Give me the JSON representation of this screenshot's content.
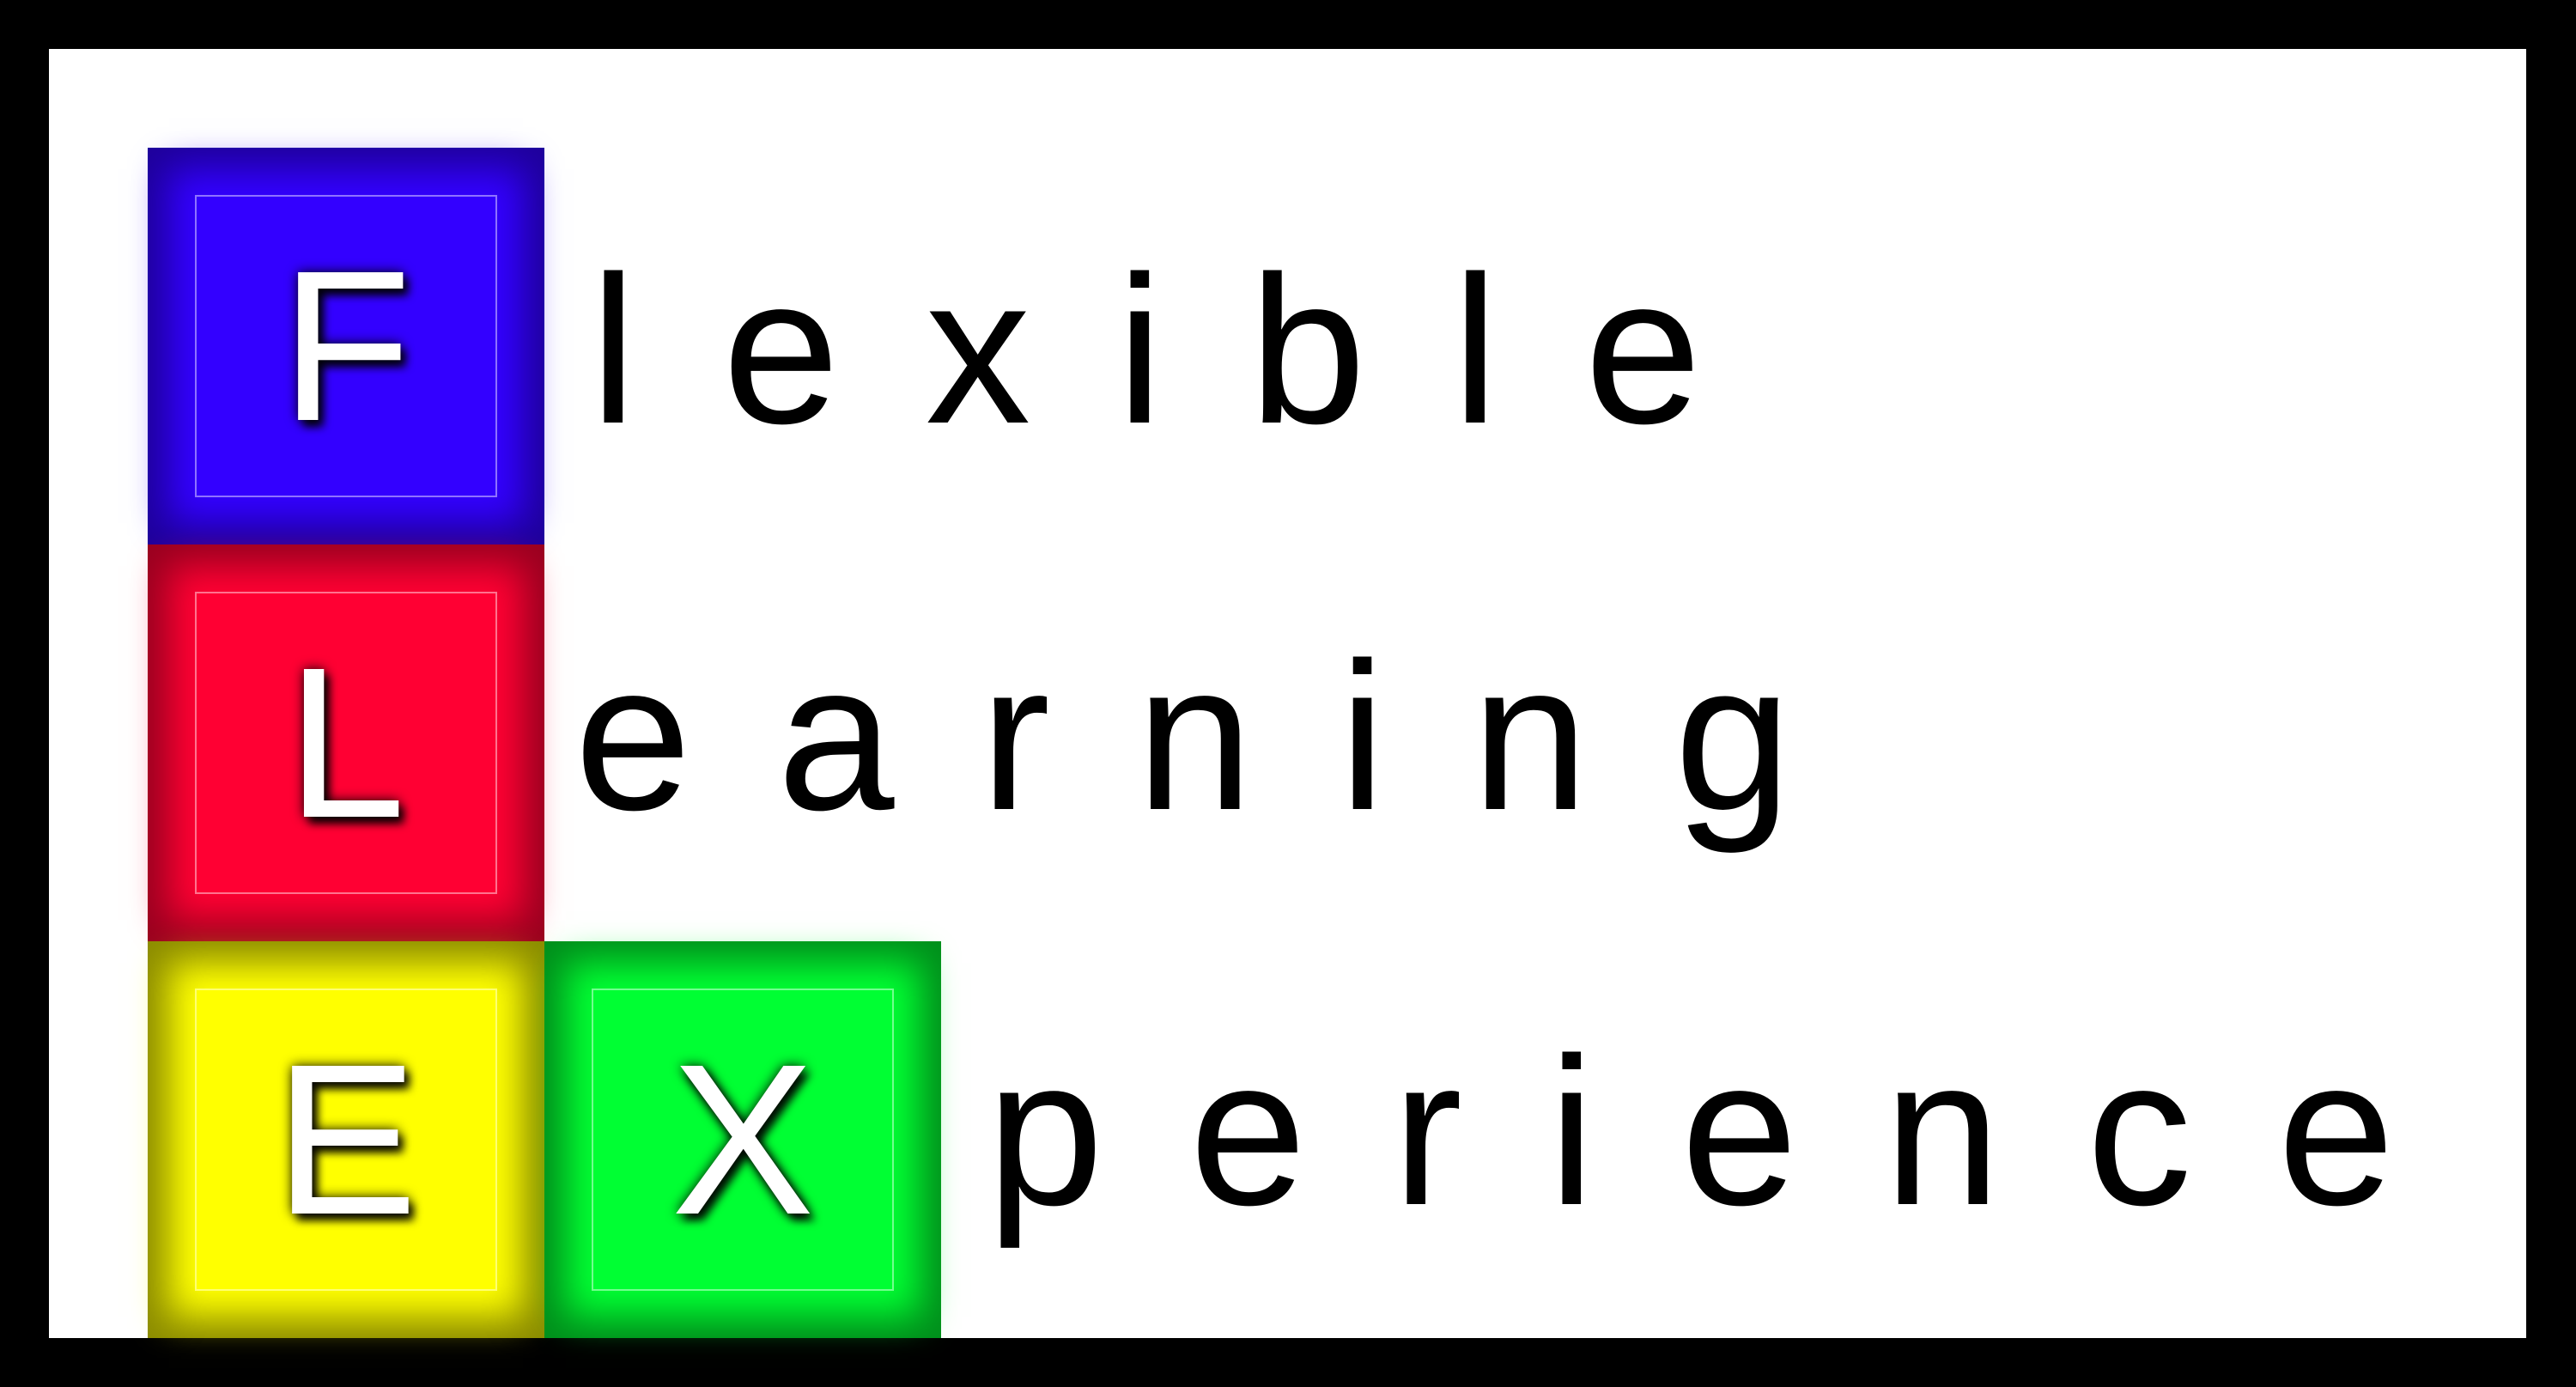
{
  "tiles": {
    "f": {
      "letter": "F",
      "color": "#3300ff",
      "edge_color": "#1f009c"
    },
    "l": {
      "letter": "L",
      "color": "#ff0033",
      "edge_color": "#9a0020"
    },
    "e": {
      "letter": "E",
      "color": "#ffff00",
      "edge_color": "#8c8c00"
    },
    "x": {
      "letter": "X",
      "color": "#00ff33",
      "edge_color": "#008f1c"
    }
  },
  "words": {
    "flexible": "lexible",
    "learning": "earning",
    "experience": "perience"
  },
  "colors": {
    "background": "#000000",
    "panel": "#ffffff",
    "text": "#000000"
  }
}
